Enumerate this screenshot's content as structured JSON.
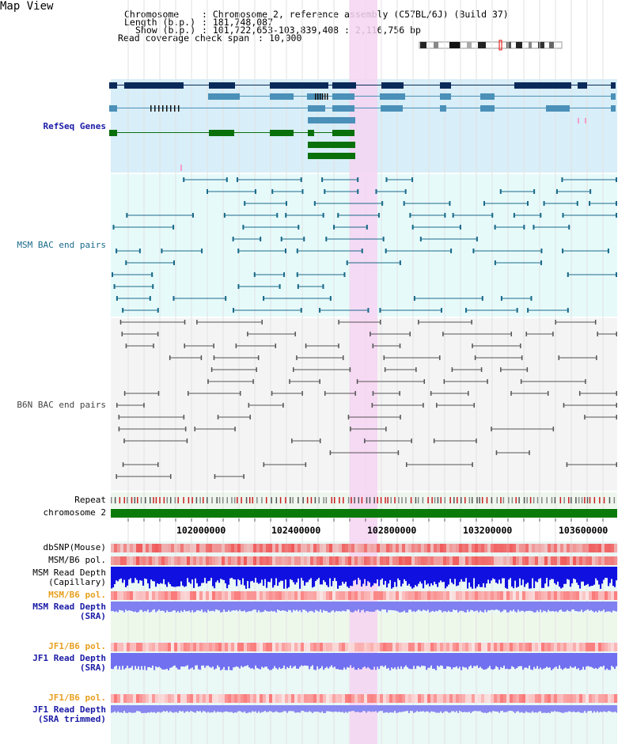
{
  "title": "Map View",
  "header": {
    "chromosome_key": "Chromosome",
    "chromosome_val": "Chromosome 2, reference assembly (C57BL/6J) (Build 37)",
    "length_key": "Length (b.p.)",
    "length_val": "181,748,087",
    "show_key": "Show (b.p.)",
    "show_val": "101,722,653-103,839,408 : 2,116,756 bp",
    "span_key": "Read coverage check span",
    "span_val": "10,000"
  },
  "tracks": {
    "refseq": "RefSeq Genes",
    "msm_bac": "MSM BAC end pairs",
    "b6n_bac": "B6N BAC end pairs",
    "repeat": "Repeat",
    "chromosome": "chromosome 2",
    "dbsnp": "dbSNP(Mouse)",
    "msm_b6_pol_1": "MSM/B6 pol.",
    "msm_read_depth_cap_1": "MSM Read Depth",
    "msm_read_depth_cap_2": "(Capillary)",
    "msm_b6_pol_2": "MSM/B6 pol.",
    "msm_read_depth_sra_1": "MSM Read Depth",
    "msm_read_depth_sra_2": "(SRA)",
    "jf1_b6_pol_1": "JF1/B6 pol.",
    "jf1_read_depth_sra_1": "JF1 Read Depth",
    "jf1_read_depth_sra_2": "(SRA)",
    "jf1_b6_pol_2": "JF1/B6 pol.",
    "jf1_read_depth_trim_1": "JF1 Read Depth",
    "jf1_read_depth_trim_2": "(SRA trimmed)"
  },
  "axis": {
    "ticks": [
      "102000000",
      "102400000",
      "102800000",
      "103200000",
      "103600000"
    ]
  },
  "colors": {
    "refseq_label": "#1a1aa6",
    "msm_label": "#1a6a8a",
    "b6n_label": "#444444",
    "pol_label": "#e8a020",
    "depth_label": "#1a1aa6",
    "highlight": "#f6d4f2",
    "chromosome_bar": "#0a7a0a"
  }
}
